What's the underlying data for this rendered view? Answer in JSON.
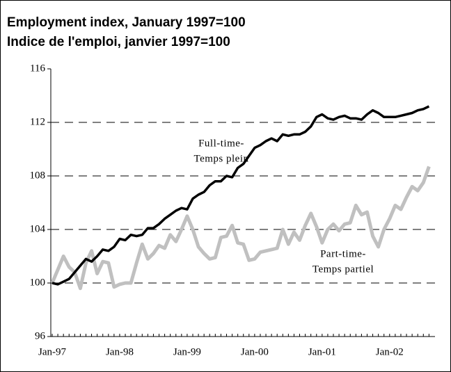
{
  "chart_data": {
    "type": "line",
    "title": "Employment index, January 1997=100",
    "subtitle": "Indice de l'emploi, janvier 1997=100",
    "annotations": [
      "Full-time-",
      "Temps plein",
      "Part-time-",
      "Temps partiel"
    ],
    "categories": [
      "Jan-97",
      null,
      null,
      null,
      null,
      null,
      null,
      null,
      null,
      null,
      null,
      null,
      "Jan-98",
      null,
      null,
      null,
      null,
      null,
      null,
      null,
      null,
      null,
      null,
      null,
      "Jan-99",
      null,
      null,
      null,
      null,
      null,
      null,
      null,
      null,
      null,
      null,
      null,
      "Jan-00",
      null,
      null,
      null,
      null,
      null,
      null,
      null,
      null,
      null,
      null,
      null,
      "Jan-01",
      null,
      null,
      null,
      null,
      null,
      null,
      null,
      null,
      null,
      null,
      null,
      "Jan-02",
      null,
      null,
      null,
      null,
      null,
      null,
      null
    ],
    "series": [
      {
        "name": "Full-time",
        "color": "#000000",
        "values": [
          100.0,
          99.9,
          100.1,
          100.3,
          100.8,
          101.3,
          101.8,
          101.6,
          102.0,
          102.5,
          102.4,
          102.7,
          103.3,
          103.2,
          103.6,
          103.5,
          103.6,
          104.1,
          104.1,
          104.4,
          104.8,
          105.1,
          105.4,
          105.6,
          105.5,
          106.3,
          106.6,
          106.8,
          107.3,
          107.6,
          107.6,
          108.0,
          107.9,
          108.6,
          108.9,
          109.5,
          110.1,
          110.3,
          110.6,
          110.8,
          110.6,
          111.1,
          111.0,
          111.1,
          111.1,
          111.3,
          111.7,
          112.4,
          112.6,
          112.3,
          112.2,
          112.4,
          112.5,
          112.3,
          112.3,
          112.2,
          112.6,
          112.9,
          112.7,
          112.4,
          112.4,
          112.4,
          112.5,
          112.6,
          112.7,
          112.9,
          113.0,
          113.2
        ]
      },
      {
        "name": "Part-time",
        "color": "#c0c0c0",
        "values": [
          100.0,
          101.0,
          102.0,
          101.2,
          100.8,
          99.6,
          101.5,
          102.4,
          100.7,
          101.6,
          101.5,
          99.7,
          99.9,
          100.0,
          100.0,
          101.5,
          102.9,
          101.8,
          102.2,
          102.8,
          102.6,
          103.6,
          103.1,
          104.0,
          105.0,
          104.0,
          102.7,
          102.2,
          101.8,
          101.9,
          103.4,
          103.5,
          104.3,
          103.0,
          102.9,
          101.7,
          101.8,
          102.3,
          102.4,
          102.5,
          102.6,
          104.0,
          102.9,
          103.8,
          103.2,
          104.3,
          105.2,
          104.2,
          103.0,
          104.0,
          104.4,
          103.9,
          104.4,
          104.5,
          105.8,
          105.1,
          105.3,
          103.5,
          102.7,
          104.0,
          104.8,
          105.8,
          105.5,
          106.4,
          107.2,
          106.9,
          107.5,
          108.7
        ]
      }
    ],
    "ylim": [
      96,
      116
    ],
    "yticks": [
      96,
      100,
      104,
      108,
      112,
      116
    ],
    "grid": true
  }
}
